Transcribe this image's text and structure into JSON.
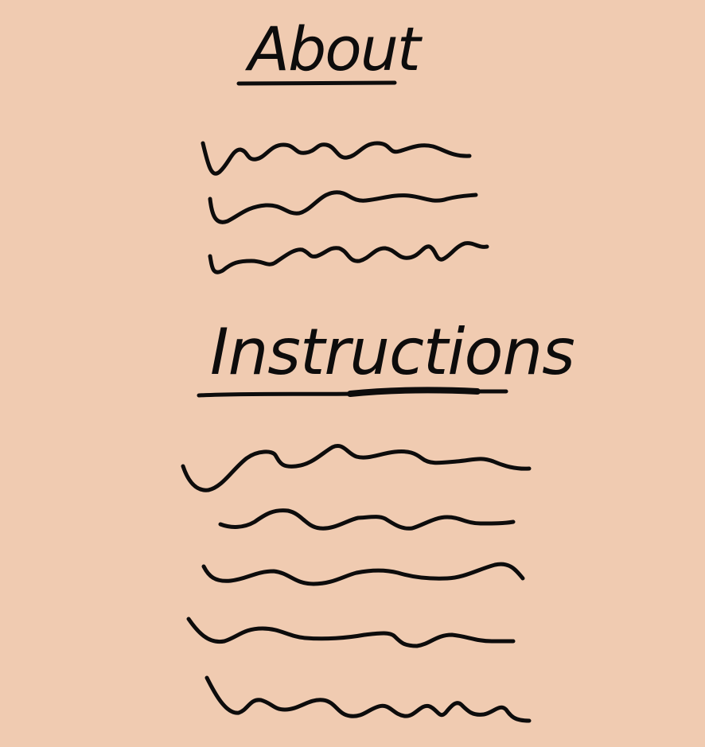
{
  "colors": {
    "background": "#f0cbb1",
    "ink": "#0d0c0c"
  },
  "sections": {
    "about": {
      "heading": "About",
      "placeholder_lines": 3
    },
    "instructions": {
      "heading": "Instructions",
      "placeholder_lines": 5
    }
  }
}
